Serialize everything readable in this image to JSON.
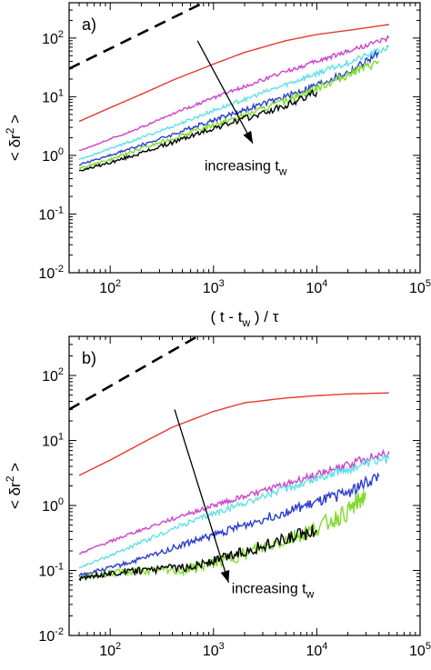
{
  "chart_data": [
    {
      "type": "line",
      "panel_label": "a)",
      "xlabel_parts": [
        "( t - t",
        "w",
        ") / τ"
      ],
      "ylabel_parts": [
        "< δr",
        "2",
        ">"
      ],
      "x_scale": "log",
      "y_scale": "log",
      "xlim": [
        40,
        100000
      ],
      "ylim": [
        0.01,
        400
      ],
      "x_ticks": [
        {
          "value": 100,
          "base": "10",
          "exp": "2"
        },
        {
          "value": 1000,
          "base": "10",
          "exp": "3"
        },
        {
          "value": 10000,
          "base": "10",
          "exp": "4"
        },
        {
          "value": 100000,
          "base": "10",
          "exp": "5"
        }
      ],
      "y_ticks": [
        {
          "value": 0.01,
          "base": "10",
          "exp": "-2"
        },
        {
          "value": 0.1,
          "base": "10",
          "exp": "-1"
        },
        {
          "value": 1,
          "base": "10",
          "exp": "0"
        },
        {
          "value": 10,
          "base": "10",
          "exp": "1"
        },
        {
          "value": 100,
          "base": "10",
          "exp": "2"
        }
      ],
      "annotation": {
        "text": "increasing t",
        "subscript": "w",
        "arrow_from": [
          700,
          90
        ],
        "arrow_to": [
          2400,
          1.6
        ],
        "text_at": [
          820,
          0.55
        ]
      },
      "series": [
        {
          "color": "#000000",
          "style": "dashed",
          "x": [
            40,
            800
          ],
          "y": [
            30,
            400
          ]
        },
        {
          "color": "#e8372c",
          "x": [
            50,
            100,
            200,
            400,
            1000,
            2000,
            5000,
            10000,
            20000,
            50000
          ],
          "y": [
            3.8,
            6.5,
            11,
            19,
            36,
            57,
            90,
            115,
            135,
            170
          ],
          "noise": 0
        },
        {
          "color": "#cc44cc",
          "x": [
            50,
            100,
            200,
            500,
            1000,
            2000,
            5000,
            10000,
            20000,
            50000
          ],
          "y": [
            1.2,
            1.9,
            3.0,
            6.0,
            9.5,
            15,
            27,
            40,
            60,
            100
          ],
          "noise": 0.02
        },
        {
          "color": "#5fe0e8",
          "x": [
            50,
            100,
            200,
            500,
            1000,
            2000,
            5000,
            10000,
            20000,
            50000
          ],
          "y": [
            0.85,
            1.3,
            2.0,
            3.6,
            5.8,
            9.0,
            16,
            25,
            38,
            70
          ],
          "noise": 0.025
        },
        {
          "color": "#2a3ccf",
          "x": [
            50,
            100,
            200,
            500,
            1000,
            2000,
            5000,
            10000,
            20000,
            40000
          ],
          "y": [
            0.7,
            1.0,
            1.5,
            2.6,
            4.0,
            6.0,
            10,
            16,
            26,
            55
          ],
          "noise": 0.03
        },
        {
          "color": "#7edc2a",
          "x": [
            50,
            100,
            200,
            500,
            1000,
            2000,
            5000,
            10000,
            20000,
            40000
          ],
          "y": [
            0.6,
            0.85,
            1.3,
            2.2,
            3.3,
            4.8,
            8.5,
            14,
            24,
            40
          ],
          "noise": 0.035
        },
        {
          "color": "#000000",
          "x": [
            50,
            100,
            200,
            500,
            1000,
            2000,
            5000,
            10000
          ],
          "y": [
            0.55,
            0.75,
            1.1,
            1.9,
            2.9,
            4.2,
            7.0,
            12
          ],
          "noise": 0.035
        }
      ]
    },
    {
      "type": "line",
      "panel_label": "b)",
      "xlabel_parts": [
        "( t - t",
        "w",
        ") / τ"
      ],
      "ylabel_parts": [
        "< δr",
        "2",
        ">"
      ],
      "x_scale": "log",
      "y_scale": "log",
      "xlim": [
        40,
        100000
      ],
      "ylim": [
        0.01,
        400
      ],
      "x_ticks": [
        {
          "value": 100,
          "base": "10",
          "exp": "2"
        },
        {
          "value": 1000,
          "base": "10",
          "exp": "3"
        },
        {
          "value": 10000,
          "base": "10",
          "exp": "4"
        },
        {
          "value": 100000,
          "base": "10",
          "exp": "5"
        }
      ],
      "y_ticks": [
        {
          "value": 0.01,
          "base": "10",
          "exp": "-2"
        },
        {
          "value": 0.1,
          "base": "10",
          "exp": "-1"
        },
        {
          "value": 1,
          "base": "10",
          "exp": "0"
        },
        {
          "value": 10,
          "base": "10",
          "exp": "1"
        },
        {
          "value": 100,
          "base": "10",
          "exp": "2"
        }
      ],
      "annotation": {
        "text": "increasing t",
        "subscript": "w",
        "arrow_from": [
          420,
          30
        ],
        "arrow_to": [
          1400,
          0.065
        ],
        "text_at": [
          1500,
          0.045
        ]
      },
      "series": [
        {
          "color": "#000000",
          "style": "dashed",
          "x": [
            40,
            700
          ],
          "y": [
            30,
            400
          ]
        },
        {
          "color": "#e8372c",
          "x": [
            50,
            100,
            200,
            400,
            1000,
            2000,
            5000,
            10000,
            20000,
            50000
          ],
          "y": [
            2.9,
            5.0,
            9.0,
            16,
            28,
            38,
            45,
            49,
            52,
            54
          ],
          "noise": 0
        },
        {
          "color": "#cc44cc",
          "x": [
            50,
            100,
            200,
            500,
            1000,
            2000,
            5000,
            10000,
            20000,
            50000
          ],
          "y": [
            0.18,
            0.28,
            0.42,
            0.7,
            1.0,
            1.4,
            2.1,
            3.0,
            4.2,
            6.8
          ],
          "noise": 0.03
        },
        {
          "color": "#5fe0e8",
          "x": [
            50,
            100,
            200,
            500,
            1000,
            2000,
            5000,
            10000,
            20000,
            50000
          ],
          "y": [
            0.11,
            0.17,
            0.27,
            0.5,
            0.75,
            1.1,
            1.8,
            2.6,
            3.6,
            5.2
          ],
          "noise": 0.035
        },
        {
          "color": "#2a3ccf",
          "x": [
            50,
            100,
            200,
            500,
            1000,
            2000,
            5000,
            10000,
            20000,
            40000
          ],
          "y": [
            0.085,
            0.11,
            0.15,
            0.25,
            0.35,
            0.5,
            0.8,
            1.1,
            1.6,
            2.8
          ],
          "noise": 0.045
        },
        {
          "color": "#7edc2a",
          "x": [
            50,
            100,
            200,
            500,
            1000,
            2000,
            5000,
            10000,
            20000,
            30000
          ],
          "y": [
            0.075,
            0.09,
            0.1,
            0.1,
            0.13,
            0.18,
            0.3,
            0.45,
            0.8,
            1.5
          ],
          "noise": 0.07
        },
        {
          "color": "#000000",
          "x": [
            50,
            100,
            200,
            500,
            1000,
            2000,
            5000,
            10000
          ],
          "y": [
            0.075,
            0.09,
            0.1,
            0.11,
            0.14,
            0.2,
            0.3,
            0.42
          ],
          "noise": 0.06
        }
      ]
    }
  ]
}
